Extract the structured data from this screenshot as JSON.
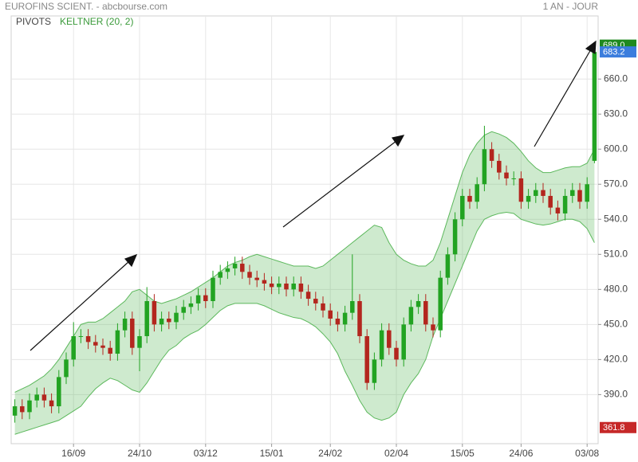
{
  "chart_data": {
    "type": "candlestick",
    "title": "EUROFINS SCIENT. - abcbourse.com",
    "period": "1 AN - JOUR",
    "indicators": [
      "PIVOTS",
      "KELTNER (20, 2)"
    ],
    "categories": [
      null,
      null,
      null,
      null,
      null,
      null,
      null,
      null,
      "16/09",
      null,
      null,
      null,
      null,
      null,
      null,
      null,
      null,
      "24/10",
      null,
      null,
      null,
      null,
      null,
      null,
      null,
      null,
      "03/12",
      null,
      null,
      null,
      null,
      null,
      null,
      null,
      null,
      "15/01",
      null,
      null,
      null,
      null,
      null,
      null,
      null,
      "24/02",
      null,
      null,
      null,
      null,
      null,
      null,
      null,
      null,
      "02/04",
      null,
      null,
      null,
      null,
      null,
      null,
      null,
      null,
      "15/05",
      null,
      null,
      null,
      null,
      null,
      null,
      null,
      "24/06",
      null,
      null,
      null,
      null,
      null,
      null,
      null,
      null,
      "03/08",
      null
    ],
    "open": [
      372,
      380,
      375,
      385,
      390,
      385,
      380,
      405,
      420,
      440,
      440,
      435,
      432,
      430,
      425,
      445,
      455,
      430,
      440,
      470,
      450,
      455,
      452,
      460,
      465,
      468,
      475,
      470,
      490,
      495,
      498,
      502,
      495,
      490,
      488,
      485,
      482,
      485,
      480,
      485,
      478,
      472,
      468,
      462,
      455,
      450,
      460,
      470,
      440,
      400,
      420,
      445,
      430,
      420,
      450,
      465,
      470,
      450,
      445,
      490,
      510,
      540,
      560,
      555,
      570,
      600,
      590,
      580,
      575,
      575,
      555,
      560,
      565,
      560,
      550,
      545,
      560,
      565,
      555,
      590
    ],
    "high": [
      386,
      386,
      391,
      396,
      396,
      391,
      411,
      426,
      452,
      446,
      446,
      441,
      438,
      436,
      451,
      461,
      461,
      446,
      482,
      476,
      461,
      461,
      466,
      471,
      474,
      481,
      481,
      496,
      501,
      504,
      508,
      508,
      501,
      496,
      494,
      491,
      491,
      491,
      491,
      491,
      484,
      478,
      474,
      468,
      461,
      466,
      510,
      476,
      446,
      426,
      451,
      451,
      436,
      456,
      471,
      476,
      476,
      456,
      496,
      516,
      546,
      566,
      566,
      576,
      620,
      606,
      596,
      586,
      581,
      581,
      566,
      571,
      571,
      566,
      556,
      566,
      571,
      571,
      576,
      689
    ],
    "low": [
      366,
      369,
      369,
      379,
      379,
      374,
      374,
      399,
      414,
      434,
      429,
      426,
      424,
      419,
      419,
      439,
      424,
      410,
      434,
      444,
      444,
      446,
      446,
      454,
      459,
      462,
      464,
      464,
      484,
      489,
      492,
      489,
      484,
      482,
      479,
      476,
      476,
      474,
      474,
      472,
      466,
      462,
      456,
      449,
      444,
      444,
      454,
      434,
      394,
      394,
      414,
      424,
      414,
      414,
      444,
      459,
      444,
      439,
      439,
      484,
      504,
      534,
      549,
      549,
      564,
      584,
      574,
      569,
      569,
      549,
      549,
      554,
      554,
      544,
      539,
      539,
      554,
      549,
      549,
      588
    ],
    "close": [
      380,
      375,
      385,
      390,
      385,
      380,
      405,
      420,
      440,
      440,
      435,
      432,
      430,
      425,
      445,
      455,
      430,
      440,
      470,
      450,
      455,
      452,
      460,
      465,
      468,
      475,
      470,
      490,
      495,
      498,
      502,
      495,
      490,
      488,
      485,
      482,
      485,
      480,
      485,
      478,
      472,
      468,
      462,
      455,
      450,
      460,
      470,
      440,
      400,
      420,
      445,
      430,
      420,
      450,
      465,
      470,
      450,
      445,
      490,
      510,
      540,
      560,
      555,
      570,
      600,
      590,
      580,
      575,
      575,
      555,
      560,
      565,
      560,
      550,
      545,
      560,
      565,
      555,
      570,
      683.2
    ],
    "up_color": "#22a322",
    "down_color": "#b3261e",
    "keltner_upper": [
      392,
      395,
      398,
      402,
      406,
      412,
      420,
      430,
      440,
      450,
      452,
      452,
      455,
      460,
      465,
      470,
      478,
      480,
      475,
      470,
      468,
      470,
      472,
      475,
      478,
      482,
      486,
      490,
      495,
      500,
      503,
      505,
      508,
      510,
      508,
      506,
      504,
      502,
      500,
      500,
      500,
      498,
      500,
      505,
      510,
      515,
      520,
      525,
      530,
      535,
      533,
      520,
      510,
      505,
      502,
      500,
      500,
      505,
      520,
      540,
      560,
      580,
      595,
      605,
      612,
      615,
      613,
      610,
      605,
      598,
      590,
      584,
      580,
      580,
      582,
      584,
      585,
      585,
      588,
      600
    ],
    "keltner_lower": [
      356,
      358,
      360,
      362,
      364,
      366,
      368,
      372,
      376,
      380,
      388,
      395,
      400,
      404,
      402,
      398,
      394,
      392,
      400,
      410,
      420,
      428,
      432,
      438,
      442,
      445,
      450,
      456,
      462,
      466,
      468,
      468,
      468,
      468,
      466,
      463,
      460,
      458,
      456,
      455,
      452,
      448,
      442,
      435,
      425,
      410,
      398,
      385,
      375,
      370,
      368,
      370,
      375,
      390,
      400,
      408,
      420,
      440,
      455,
      470,
      485,
      500,
      515,
      530,
      540,
      543,
      545,
      546,
      545,
      540,
      538,
      536,
      535,
      536,
      538,
      540,
      540,
      538,
      532,
      520
    ],
    "keltner_color": "#5cb85c",
    "ylim": [
      348,
      714
    ],
    "yticks": [
      {
        "value": 390,
        "label": "390.0"
      },
      {
        "value": 420,
        "label": "420.0"
      },
      {
        "value": 450,
        "label": "450.0"
      },
      {
        "value": 480,
        "label": "480.0"
      },
      {
        "value": 510,
        "label": "510.0"
      },
      {
        "value": 540,
        "label": "540.0"
      },
      {
        "value": 570,
        "label": "570.0"
      },
      {
        "value": 600,
        "label": "600.0"
      },
      {
        "value": 630,
        "label": "630.0"
      },
      {
        "value": 660,
        "label": "660.0"
      }
    ],
    "price_labels": [
      {
        "value": 689,
        "label": "689.0",
        "color": "#1f8a1f"
      },
      {
        "value": 683.2,
        "label": "683.2",
        "color": "#3b7ddd"
      },
      {
        "value": 361.8,
        "label": "361.8",
        "color": "#c62828"
      }
    ],
    "grid": true
  }
}
